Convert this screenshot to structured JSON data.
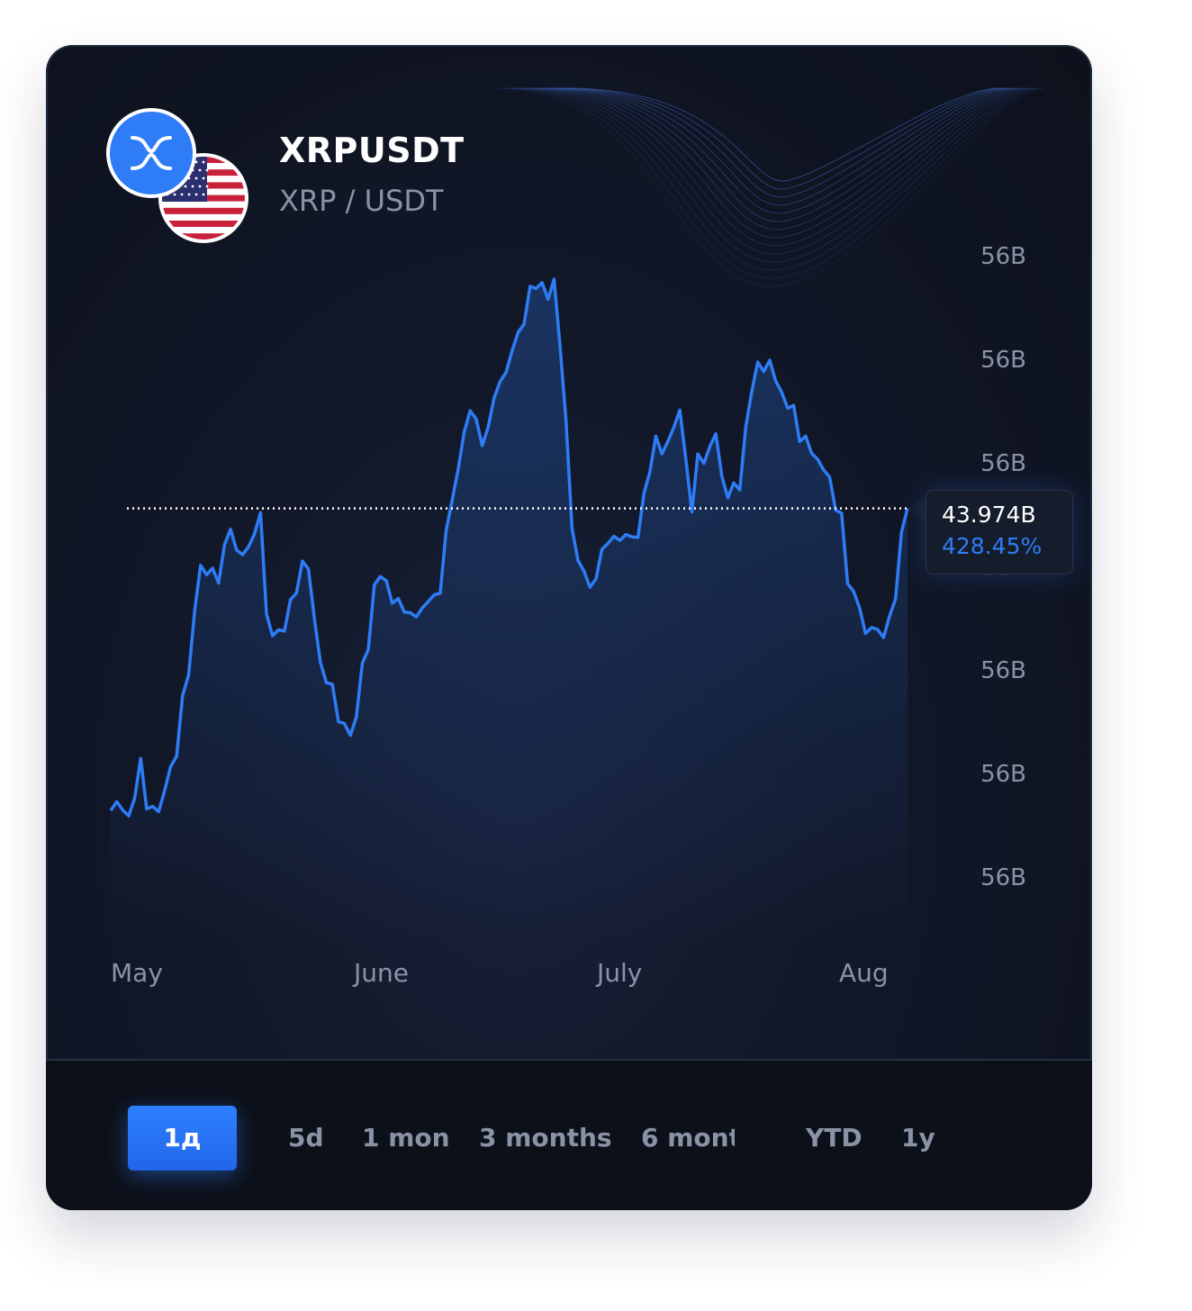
{
  "pair": {
    "symbol": "XRPUSDT",
    "subtitle": "XRP / USDT",
    "base_icon": "xrp-icon",
    "quote_icon": "us-flag-icon"
  },
  "colors": {
    "accent": "#2e7cf6",
    "background": "#0d111c",
    "text_muted": "#8a93a6"
  },
  "chart_data": {
    "type": "line",
    "title": "",
    "xlabel": "",
    "ylabel": "",
    "x_tick_labels": [
      "May",
      "June",
      "July",
      "Aug"
    ],
    "y_tick_labels": [
      "56B",
      "56B",
      "56B",
      "56B",
      "56B",
      "56B",
      "56B"
    ],
    "ylim": [
      0,
      100
    ],
    "grid": false,
    "series": [
      {
        "values": [
          10.3,
          11.8,
          10.4,
          9.4,
          12.4,
          19.1,
          10.6,
          11.0,
          10.1,
          13.7,
          17.7,
          19.5,
          29.7,
          33.2,
          44.0,
          51.7,
          50.1,
          51.2,
          48.7,
          55.2,
          57.8,
          54.3,
          53.5,
          54.8,
          57.0,
          60.6,
          43.5,
          39.8,
          40.8,
          40.6,
          45.9,
          47.0,
          52.4,
          51.1,
          42.7,
          35.3,
          31.9,
          31.6,
          25.3,
          25.0,
          23.0,
          26.1,
          35.2,
          37.5,
          48.4,
          49.8,
          49.1,
          45.3,
          46.1,
          43.8,
          43.7,
          43.0,
          44.5,
          45.6,
          46.7,
          47.0,
          57.6,
          62.7,
          67.9,
          74.2,
          77.8,
          76.4,
          71.9,
          75.0,
          80.0,
          82.7,
          84.3,
          87.9,
          91.0,
          92.4,
          98.8,
          98.4,
          99.4,
          96.6,
          100.0,
          88.6,
          76.1,
          57.9,
          52.5,
          50.7,
          48.0,
          49.4,
          54.4,
          55.4,
          56.6,
          55.9,
          56.9,
          56.5,
          56.4,
          63.8,
          67.5,
          73.5,
          70.5,
          72.6,
          75.0,
          77.9,
          69.6,
          60.7,
          70.5,
          68.9,
          71.7,
          73.9,
          66.8,
          63.1,
          65.6,
          64.4,
          75.0,
          81.0,
          86.0,
          84.4,
          86.3,
          82.8,
          80.9,
          78.2,
          78.7,
          72.6,
          73.5,
          70.6,
          69.6,
          67.8,
          66.6,
          61.0,
          60.5,
          48.6,
          47.3,
          44.5,
          40.2,
          41.2,
          40.9,
          39.5,
          43.1,
          46.0,
          57.3,
          61.3
        ]
      }
    ],
    "reference_line_value": 61.3,
    "last_value_label": "43.974B",
    "last_change_label": "428.45%"
  },
  "ranges": [
    {
      "label": "1д",
      "active": true
    },
    {
      "label": "5d",
      "active": false
    },
    {
      "label": "1 mon",
      "active": false
    },
    {
      "label": "3 months",
      "active": false
    },
    {
      "label": "6 mont",
      "active": false
    },
    {
      "label": "YTD",
      "active": false
    },
    {
      "label": "1y",
      "active": false
    }
  ]
}
